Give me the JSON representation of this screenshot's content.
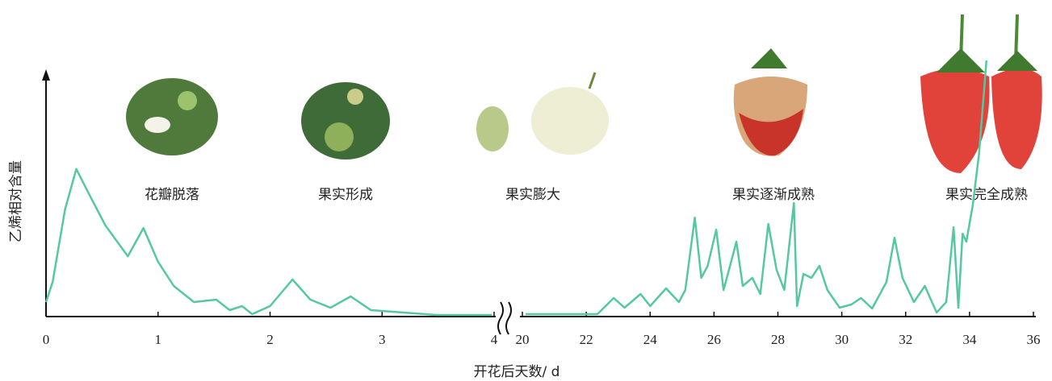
{
  "chart_data": {
    "type": "line",
    "y_label": "乙烯相对含量",
    "x_label": "开花后天数/ d",
    "color": "#55c8a3",
    "ylim": [
      0,
      100
    ],
    "annotations": [
      "花瓣脱落",
      "果实形成",
      "果实膨大",
      "果实逐渐成熟",
      "果实完全成熟"
    ],
    "panels": [
      {
        "xlim": [
          0,
          4
        ],
        "xticks": [
          0,
          1,
          2,
          3,
          4
        ],
        "x": [
          0,
          0.06,
          0.17,
          0.27,
          0.38,
          0.53,
          0.73,
          0.87,
          1.0,
          1.14,
          1.32,
          1.52,
          1.64,
          1.75,
          1.84,
          2.0,
          2.2,
          2.36,
          2.54,
          2.72,
          2.9,
          3.19,
          3.48,
          3.98
        ],
        "values": [
          5.4,
          13,
          40,
          55,
          46,
          34,
          22.5,
          33,
          20.4,
          11.4,
          5.4,
          6.3,
          2.4,
          3.9,
          0.9,
          3.9,
          13.8,
          6.3,
          3.3,
          7.5,
          2.4,
          1.5,
          0.6,
          0.6
        ]
      },
      {
        "xlim": [
          20,
          36
        ],
        "xticks": [
          20,
          22,
          24,
          26,
          28,
          30,
          32,
          34,
          36
        ],
        "x": [
          20.1,
          22.35,
          22.86,
          23.2,
          23.7,
          24.0,
          24.5,
          24.9,
          25.1,
          25.4,
          25.6,
          25.8,
          26.07,
          26.3,
          26.5,
          26.7,
          26.9,
          27.2,
          27.45,
          27.7,
          27.96,
          28.2,
          28.5,
          28.6,
          28.8,
          29.05,
          29.3,
          29.55,
          29.93,
          30.3,
          30.6,
          30.95,
          31.4,
          31.65,
          31.9,
          32.26,
          32.6,
          32.97,
          33.27,
          33.5,
          33.65,
          33.78,
          33.9,
          34.1,
          34.3,
          34.53
        ],
        "values": [
          0.9,
          0.9,
          6.9,
          3.3,
          8.4,
          3.9,
          10.5,
          5.4,
          9.9,
          36.9,
          14.4,
          18.9,
          32.4,
          9.9,
          18.9,
          27.9,
          11.4,
          14.4,
          8.4,
          34.5,
          17.4,
          9.9,
          42.3,
          3.9,
          15.9,
          14.4,
          18.9,
          9.9,
          3.3,
          4.5,
          6.9,
          3,
          12.9,
          29.4,
          14.4,
          5.4,
          11.4,
          1.5,
          5.4,
          33.3,
          3.3,
          30.9,
          27.9,
          41.4,
          60.9,
          95.5
        ]
      }
    ]
  }
}
